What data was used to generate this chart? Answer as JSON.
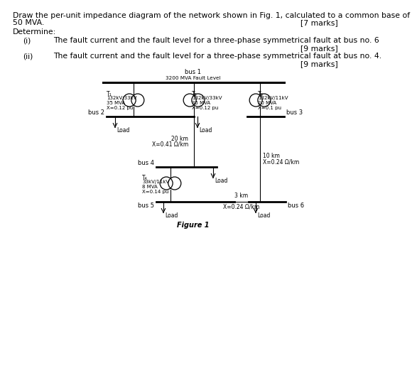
{
  "bg_color": "#ffffff",
  "text_color": "#000000",
  "line_color": "#000000",
  "title_line1": "Draw the per-unit impedance diagram of the network shown in Fig. 1, calculated to a common base of",
  "title_line2": "50 MVA.",
  "marks1": "[7 marks]",
  "determine": "Determine:",
  "item_i_num": "(i)",
  "item_i_text": "The fault current and the fault level for a three-phase symmetrical fault at bus no. 6",
  "marks2": "[9 marks]",
  "item_ii_num": "(ii)",
  "item_ii_text": "The fault current and the fault level for a three-phase symmetrical fault at bus no. 4.",
  "marks3": "[9 marks]",
  "bus1_label": "bus 1",
  "bus1_sublabel": "3200 MVA Fault Level",
  "T1_label": "T₁",
  "T1_line1": "132kV/33kV",
  "T1_line2": "35 MVA",
  "T1_line3": "X=0.12 pu",
  "T2_label": "T₂",
  "T2_line1": "132kV/33kV",
  "T2_line2": "35 MVA",
  "T2_line3": "X=0.12 pu",
  "T3_label": "T₃",
  "T3_line1": "132kV/11kV",
  "T3_line2": "20 MVA",
  "T3_line3": "X=0.1 pu",
  "T4_label": "T₄",
  "T4_line1": "33kV/11kV",
  "T4_line2": "8 MVA",
  "T4_line3": "X=0.14 pu",
  "bus2_label": "bus 2",
  "bus3_label": "bus 3",
  "bus4_label": "bus 4",
  "bus5_label": "bus 5",
  "bus6_label": "bus 6",
  "load_label": "Load",
  "line1_l1": "20 km",
  "line1_l2": "X=0.41 Ω/km",
  "line2_l1": "10 km",
  "line2_l2": "X=0.24 Ω/km",
  "line3_l1": "3 km",
  "line3_l2": "X=0.24 Ω/km",
  "figure_label": "Figure 1"
}
